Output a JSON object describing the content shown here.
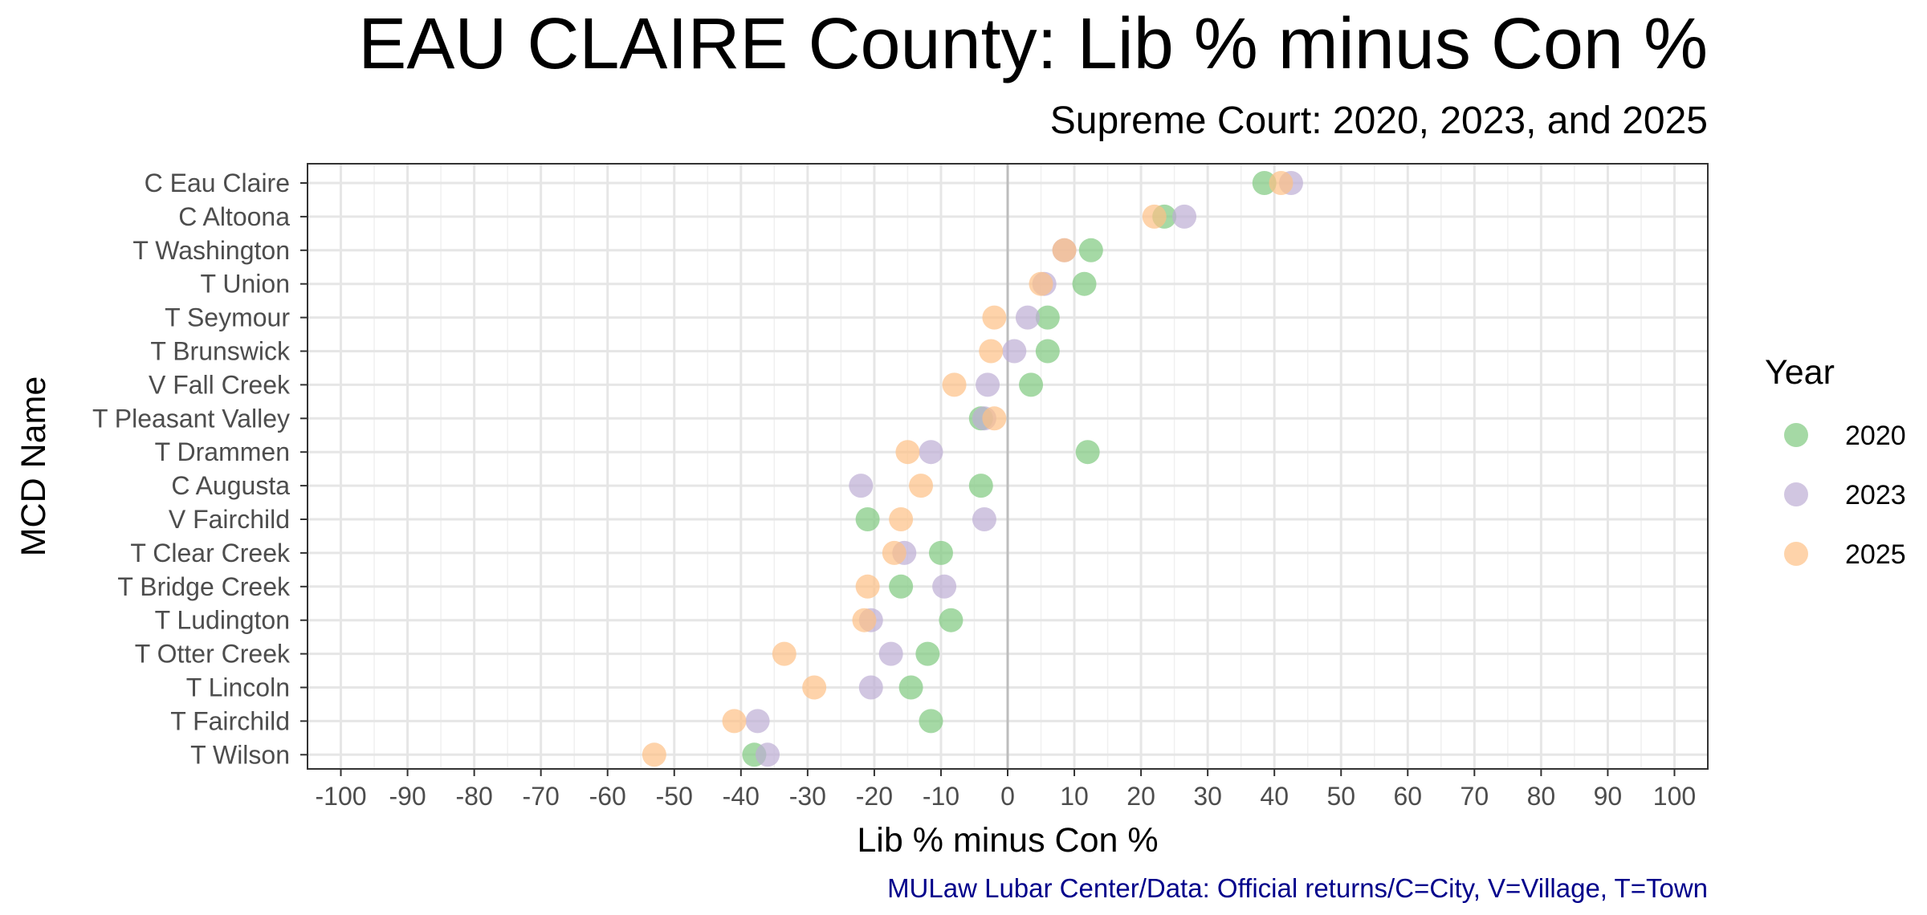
{
  "chart_data": {
    "type": "scatter",
    "title": "EAU CLAIRE County: Lib % minus Con %",
    "subtitle": "Supreme Court: 2020, 2023, and 2025",
    "xlabel": "Lib % minus Con %",
    "ylabel": "MCD Name",
    "caption": "MULaw Lubar Center/Data: Official returns/C=City, V=Village, T=Town",
    "xlim": [
      -105,
      105
    ],
    "x_ticks": [
      -100,
      -90,
      -80,
      -70,
      -60,
      -50,
      -40,
      -30,
      -20,
      -10,
      0,
      10,
      20,
      30,
      40,
      50,
      60,
      70,
      80,
      90,
      100
    ],
    "x_tick_labels": [
      "-100",
      "-90",
      "-80",
      "-70",
      "-60",
      "-50",
      "-40",
      "-30",
      "-20",
      "-10",
      "0",
      "10",
      "20",
      "30",
      "40",
      "50",
      "60",
      "70",
      "80",
      "90",
      "100"
    ],
    "grid": true,
    "reference_line_x": 0,
    "legend_title": "Year",
    "legend_position": "right",
    "categories": [
      "C Eau Claire",
      "C Altoona",
      "T Washington",
      "T Union",
      "T Seymour",
      "T Brunswick",
      "V Fall Creek",
      "T Pleasant Valley",
      "T Drammen",
      "C Augusta",
      "V Fairchild",
      "T Clear Creek",
      "T Bridge Creek",
      "T Ludington",
      "T Otter Creek",
      "T Lincoln",
      "T Fairchild",
      "T Wilson"
    ],
    "series": [
      {
        "name": "2020",
        "color": "#7fc97f",
        "values": [
          38.5,
          23.5,
          12.5,
          11.5,
          6,
          6,
          3.5,
          -4,
          12,
          -4,
          -21,
          -10,
          -16,
          -8.5,
          -12,
          -14.5,
          -11.5,
          -38
        ]
      },
      {
        "name": "2023",
        "color": "#beaed4",
        "values": [
          42.5,
          26.5,
          8.5,
          5.5,
          3,
          1,
          -3,
          -3.5,
          -11.5,
          -22,
          -3.5,
          -15.5,
          -9.5,
          -20.5,
          -17.5,
          -20.5,
          -37.5,
          -36
        ]
      },
      {
        "name": "2025",
        "color": "#fdc086",
        "values": [
          41,
          22,
          8.5,
          5,
          -2,
          -2.5,
          -8,
          -2,
          -15,
          -13,
          -16,
          -17,
          -21,
          -21.5,
          -33.5,
          -29,
          -41,
          -53
        ]
      }
    ]
  }
}
